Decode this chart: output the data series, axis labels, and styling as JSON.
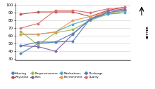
{
  "x_points": [
    1,
    2,
    3,
    4,
    5,
    6,
    7
  ],
  "series": {
    "Nursing": [
      37,
      50,
      52,
      53,
      82,
      90,
      93
    ],
    "Physician": [
      88,
      91,
      91,
      91,
      85,
      93,
      97
    ],
    "Responsiveness": [
      66,
      48,
      64,
      68,
      80,
      88,
      92
    ],
    "Pain": [
      47,
      46,
      40,
      62,
      82,
      92,
      95
    ],
    "Medications": [
      62,
      62,
      65,
      75,
      82,
      88,
      90
    ],
    "Environment": [
      62,
      62,
      65,
      80,
      85,
      90,
      93
    ],
    "Discharge": [
      47,
      52,
      52,
      63,
      81,
      90,
      94
    ],
    "Quality": [
      70,
      76,
      93,
      93,
      90,
      95,
      97
    ]
  },
  "colors": {
    "Nursing": "#4f81bd",
    "Physician": "#c0504d",
    "Responsiveness": "#9bbb59",
    "Pain": "#8064a2",
    "Medications": "#4bacc6",
    "Environment": "#f79646",
    "Discharge": "#5a7fba",
    "Quality": "#e36c6c"
  },
  "line_styles": {
    "Nursing": "-",
    "Physician": "-",
    "Responsiveness": "-",
    "Pain": "-",
    "Medications": "-",
    "Environment": "-",
    "Discharge": "-",
    "Quality": "-"
  },
  "ylim": [
    28,
    103
  ],
  "yticks": [
    30,
    40,
    50,
    60,
    70,
    80,
    90,
    100
  ],
  "better_label": "BETTER",
  "background_color": "#ffffff",
  "grid_color": "#cccccc"
}
